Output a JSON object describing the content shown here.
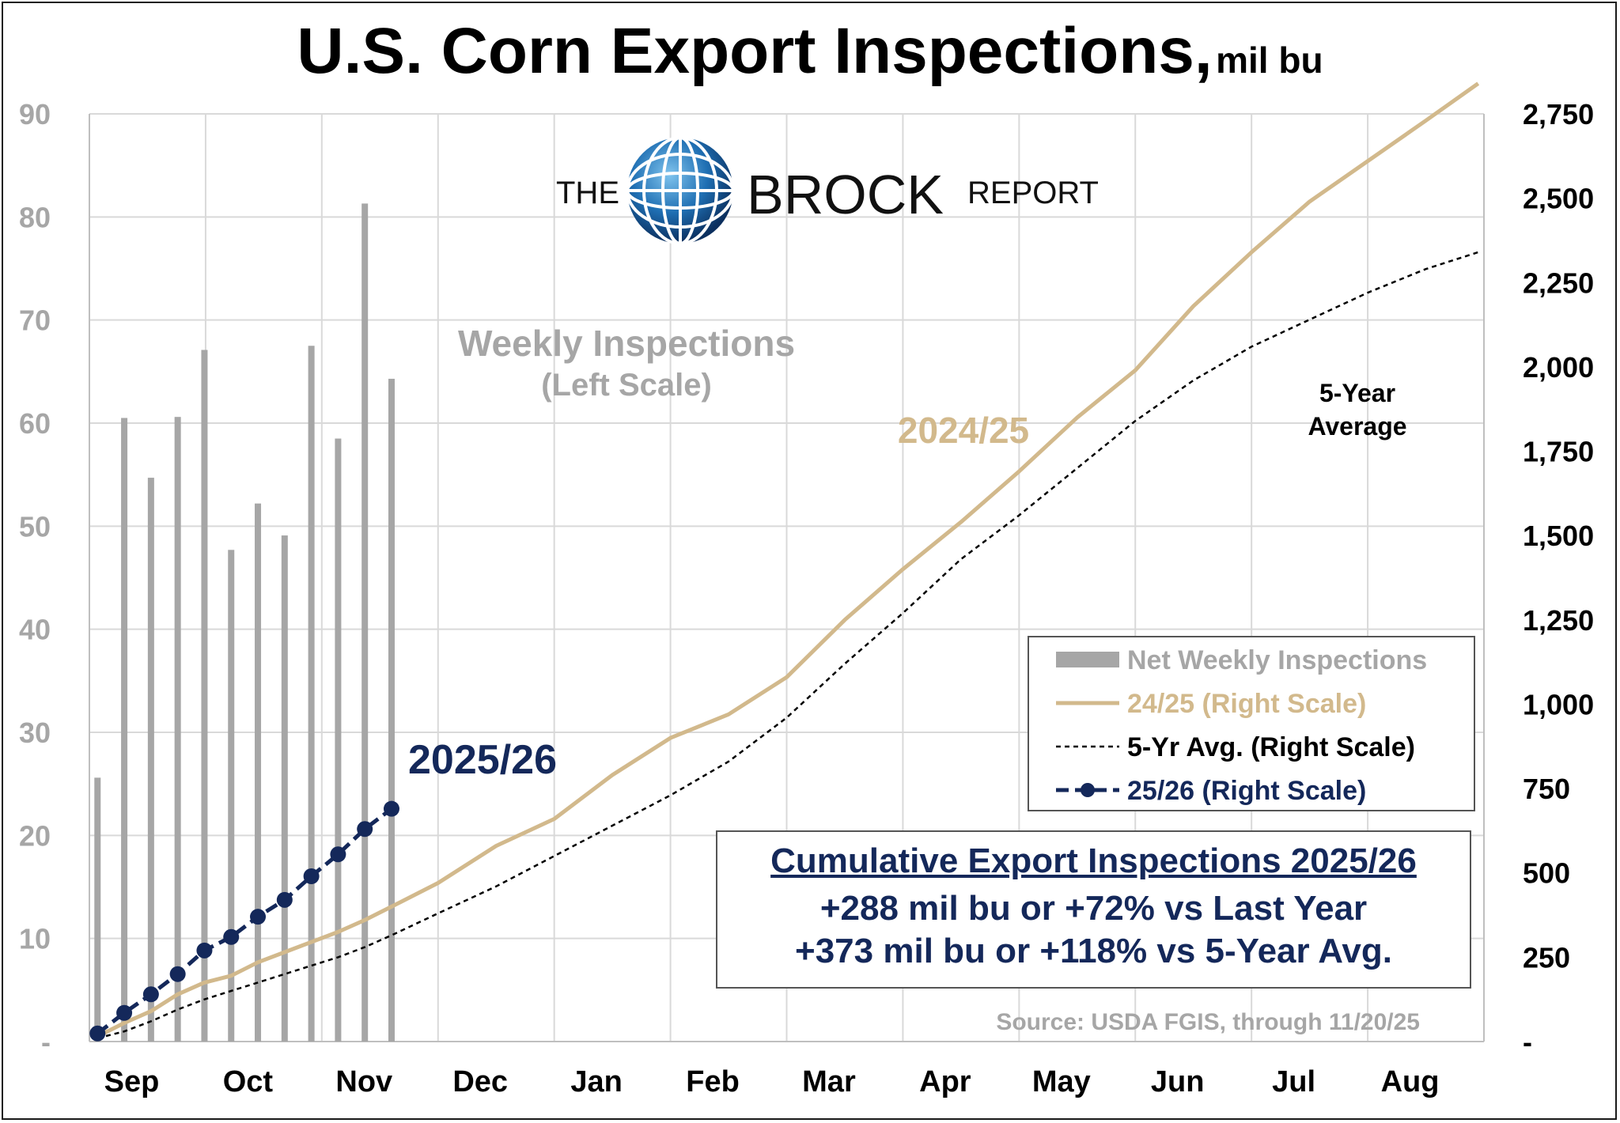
{
  "title": {
    "main": "U.S. Corn Export Inspections,",
    "unit": "mil bu"
  },
  "logo": {
    "the": "THE",
    "brock": "BROCK",
    "report": "REPORT"
  },
  "colors": {
    "bars": "#a6a6a6",
    "line_2425": "#d2b98c",
    "line_5yr": "#000000",
    "line_2526": "#14285a",
    "grid": "#d9d9d9"
  },
  "annotations": {
    "weekly": "Weekly Inspections",
    "weekly_scale": "(Left Scale)",
    "label_2425": "2024/25",
    "label_2526": "2025/26",
    "label_5yr_1": "5-Year",
    "label_5yr_2": "Average"
  },
  "legend": {
    "items": [
      {
        "label": "Net Weekly Inspections",
        "color": "#a6a6a6",
        "kind": "bar"
      },
      {
        "label": "24/25 (Right Scale)",
        "color": "#d2b98c",
        "kind": "line"
      },
      {
        "label": "5-Yr Avg. (Right Scale)",
        "color": "#000000",
        "kind": "dashed"
      },
      {
        "label": "25/26 (Right Scale)",
        "color": "#14285a",
        "kind": "marker-line"
      }
    ]
  },
  "summary": {
    "header": "Cumulative Export Inspections 2025/26",
    "line1": "+288 mil bu or +72% vs Last Year",
    "line2": "+373 mil bu or +118% vs 5-Year Avg."
  },
  "source": "Source: USDA FGIS, through 11/20/25",
  "chart_data": {
    "type": "bar+line",
    "title": "U.S. Corn Export Inspections, mil bu",
    "x_ticks": [
      "Sep",
      "Oct",
      "Nov",
      "Dec",
      "Jan",
      "Feb",
      "Mar",
      "Apr",
      "May",
      "Jun",
      "Jul",
      "Aug"
    ],
    "x_range_months": [
      0,
      12
    ],
    "left_axis": {
      "ylim": [
        0,
        90
      ],
      "ticks": [
        "-",
        "10",
        "20",
        "30",
        "40",
        "50",
        "60",
        "70",
        "80",
        "90"
      ]
    },
    "right_axis": {
      "ylim": [
        0,
        2750
      ],
      "ticks": [
        "-",
        "250",
        "500",
        "750",
        "1,000",
        "1,250",
        "1,500",
        "1,750",
        "2,000",
        "2,250",
        "2,500",
        "2,750"
      ]
    },
    "bars_weekly": {
      "name": "Net Weekly Inspections",
      "axis": "left",
      "x": [
        0.07,
        0.3,
        0.53,
        0.76,
        0.99,
        1.22,
        1.45,
        1.68,
        1.91,
        2.14,
        2.37,
        2.6
      ],
      "values": [
        25.6,
        60.5,
        54.7,
        60.6,
        67.1,
        47.7,
        52.2,
        49.1,
        67.5,
        58.5,
        81.3,
        64.3
      ]
    },
    "series": [
      {
        "name": "24/25 (Right Scale)",
        "axis": "right",
        "x": [
          0.07,
          0.3,
          0.53,
          0.76,
          0.99,
          1.22,
          1.45,
          1.68,
          1.91,
          2.14,
          2.37,
          2.6,
          3.0,
          3.5,
          4.0,
          4.5,
          5.0,
          5.5,
          6.0,
          6.5,
          7.0,
          7.5,
          8.0,
          8.5,
          9.0,
          9.5,
          10.0,
          10.5,
          11.0,
          11.5,
          11.95
        ],
        "values": [
          15,
          55,
          90,
          140,
          175,
          195,
          235,
          265,
          295,
          325,
          360,
          400,
          470,
          580,
          660,
          790,
          900,
          970,
          1080,
          1250,
          1400,
          1540,
          1690,
          1850,
          1990,
          2180,
          2340,
          2490,
          2610,
          2730,
          2840
        ]
      },
      {
        "name": "5-Yr Avg. (Right Scale)",
        "axis": "right",
        "x": [
          0.07,
          0.3,
          0.53,
          0.76,
          0.99,
          1.22,
          1.45,
          1.68,
          1.91,
          2.14,
          2.37,
          2.6,
          3.0,
          3.5,
          4.0,
          4.5,
          5.0,
          5.5,
          6.0,
          6.5,
          7.0,
          7.5,
          8.0,
          8.5,
          9.0,
          9.5,
          10.0,
          10.5,
          11.0,
          11.5,
          11.95
        ],
        "values": [
          10,
          30,
          60,
          95,
          125,
          150,
          175,
          200,
          225,
          250,
          280,
          315,
          380,
          460,
          550,
          640,
          730,
          830,
          960,
          1120,
          1270,
          1430,
          1560,
          1700,
          1840,
          1960,
          2060,
          2140,
          2220,
          2290,
          2340
        ]
      },
      {
        "name": "25/26 (Right Scale)",
        "axis": "right",
        "x": [
          0.07,
          0.3,
          0.53,
          0.76,
          0.99,
          1.22,
          1.45,
          1.68,
          1.91,
          2.14,
          2.37,
          2.6
        ],
        "values": [
          24,
          85,
          140,
          200,
          270,
          310,
          370,
          420,
          490,
          555,
          630,
          690
        ]
      }
    ]
  }
}
